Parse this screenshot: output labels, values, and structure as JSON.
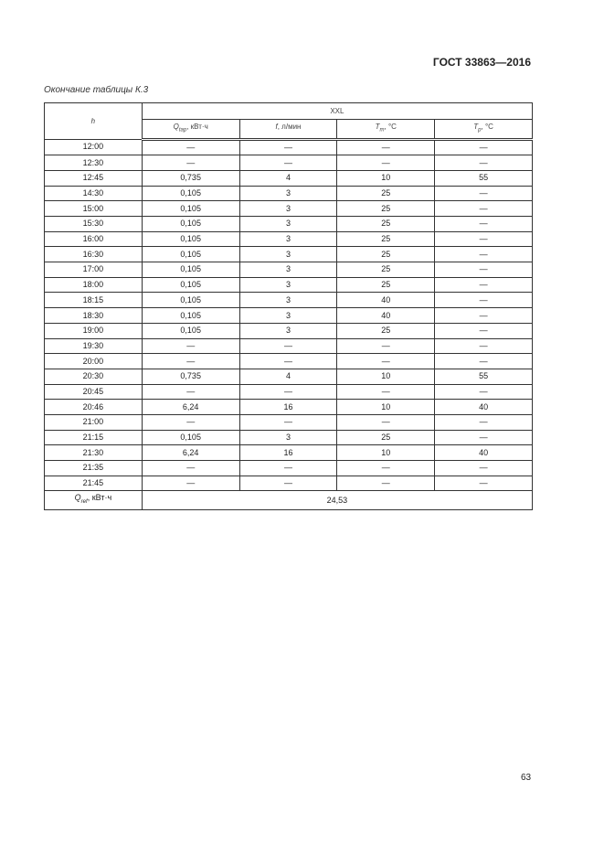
{
  "header": "ГОСТ 33863—2016",
  "caption": "Окончание таблицы К.3",
  "table": {
    "h_label": "h",
    "group": "XXL",
    "cols": [
      {
        "sym": "Q",
        "sub": "tap",
        "unit": ", кВт·ч"
      },
      {
        "sym": "f",
        "sub": "",
        "unit": ", л/мин"
      },
      {
        "sym": "T",
        "sub": "m",
        "unit": ", °C"
      },
      {
        "sym": "T",
        "sub": "p",
        "unit": ", °C"
      }
    ],
    "rows": [
      [
        "12:00",
        "—",
        "—",
        "—",
        "—"
      ],
      [
        "12:30",
        "—",
        "—",
        "—",
        "—"
      ],
      [
        "12:45",
        "0,735",
        "4",
        "10",
        "55"
      ],
      [
        "14:30",
        "0,105",
        "3",
        "25",
        "—"
      ],
      [
        "15:00",
        "0,105",
        "3",
        "25",
        "—"
      ],
      [
        "15:30",
        "0,105",
        "3",
        "25",
        "—"
      ],
      [
        "16:00",
        "0,105",
        "3",
        "25",
        "—"
      ],
      [
        "16:30",
        "0,105",
        "3",
        "25",
        "—"
      ],
      [
        "17:00",
        "0,105",
        "3",
        "25",
        "—"
      ],
      [
        "18:00",
        "0,105",
        "3",
        "25",
        "—"
      ],
      [
        "18:15",
        "0,105",
        "3",
        "40",
        "—"
      ],
      [
        "18:30",
        "0,105",
        "3",
        "40",
        "—"
      ],
      [
        "19:00",
        "0,105",
        "3",
        "25",
        "—"
      ],
      [
        "19:30",
        "—",
        "—",
        "—",
        "—"
      ],
      [
        "20:00",
        "—",
        "—",
        "—",
        "—"
      ],
      [
        "20:30",
        "0,735",
        "4",
        "10",
        "55"
      ],
      [
        "20:45",
        "—",
        "—",
        "—",
        "—"
      ],
      [
        "20:46",
        "6,24",
        "16",
        "10",
        "40"
      ],
      [
        "21:00",
        "—",
        "—",
        "—",
        "—"
      ],
      [
        "21:15",
        "0,105",
        "3",
        "25",
        "—"
      ],
      [
        "21:30",
        "6,24",
        "16",
        "10",
        "40"
      ],
      [
        "21:35",
        "—",
        "—",
        "—",
        "—"
      ],
      [
        "21:45",
        "—",
        "—",
        "—",
        "—"
      ]
    ],
    "total": {
      "sym": "Q",
      "sub": "ref",
      "unit": ", кВт·ч",
      "value": "24,53"
    }
  },
  "page_number": "63"
}
